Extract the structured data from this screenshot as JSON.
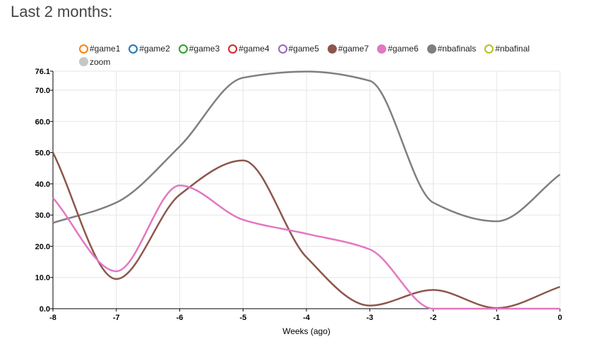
{
  "page": {
    "title": "Last 2 months:"
  },
  "chart_data": {
    "type": "line",
    "xlabel": "Weeks (ago)",
    "ylabel": "",
    "xlim": [
      -8,
      0
    ],
    "ylim": [
      0,
      76.1
    ],
    "x_ticks": [
      "-8",
      "-7",
      "-6",
      "-5",
      "-4",
      "-3",
      "-2",
      "-1",
      "0"
    ],
    "y_ticks": [
      "0.0",
      "10.0",
      "20.0",
      "30.0",
      "40.0",
      "50.0",
      "60.0",
      "70.0",
      "76.1"
    ],
    "grid": true,
    "legend_position": "top",
    "legend": [
      {
        "label": "#game1",
        "color": "#ff7f0e",
        "filled": false
      },
      {
        "label": "#game2",
        "color": "#1f77b4",
        "filled": false
      },
      {
        "label": "#game3",
        "color": "#2ca02c",
        "filled": false
      },
      {
        "label": "#game4",
        "color": "#d62728",
        "filled": false
      },
      {
        "label": "#game5",
        "color": "#9467bd",
        "filled": false
      },
      {
        "label": "#game7",
        "color": "#8c564b",
        "filled": true
      },
      {
        "label": "#game6",
        "color": "#e377c2",
        "filled": true
      },
      {
        "label": "#nbafinals",
        "color": "#7f7f7f",
        "filled": true
      },
      {
        "label": "#nbafinal",
        "color": "#bcbd22",
        "filled": false
      },
      {
        "label": "zoom",
        "color": "#c7c7c7",
        "filled": true
      }
    ],
    "x": [
      -8,
      -7,
      -6,
      -5,
      -4,
      -3,
      -2,
      -1,
      0
    ],
    "series": [
      {
        "name": "#nbafinals",
        "color": "#7f7f7f",
        "values": [
          27.5,
          34,
          52,
          74,
          76,
          73,
          34,
          28,
          43
        ]
      },
      {
        "name": "#game7",
        "color": "#8c564b",
        "values": [
          50,
          9.5,
          36.5,
          47.5,
          16.5,
          1,
          6,
          0.2,
          7
        ]
      },
      {
        "name": "#game6",
        "color": "#e377c2",
        "values": [
          35.5,
          12,
          39.5,
          28.5,
          24,
          19,
          0,
          0,
          0
        ]
      }
    ]
  }
}
